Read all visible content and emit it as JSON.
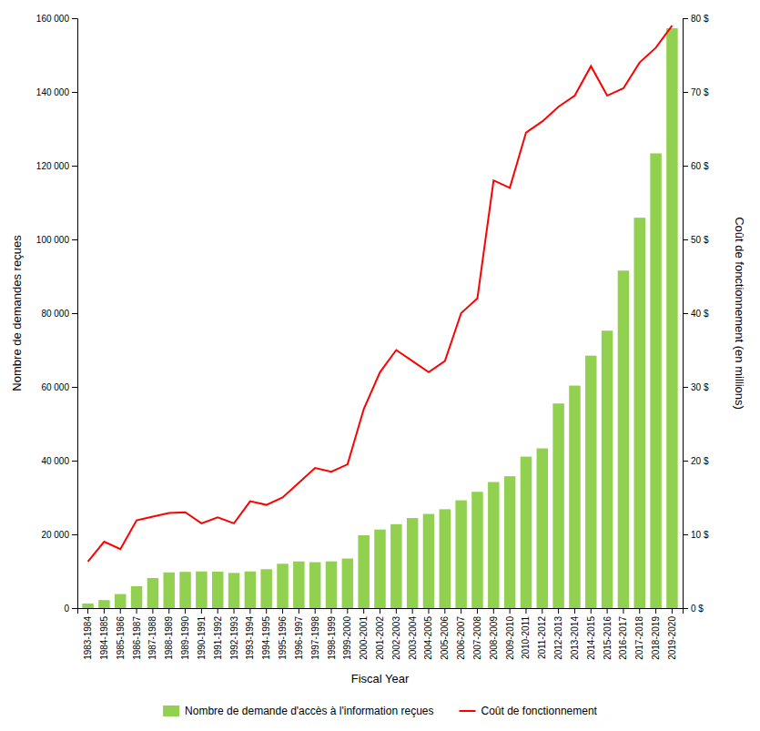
{
  "chart_data": {
    "type": "bar",
    "xlabel": "Fiscal Year",
    "ylabel": "Nombre de demandes reçues",
    "y2label": "Coût de fonctionnement (en millions)",
    "categories": [
      "1983-1984",
      "1984-1985",
      "1985-1986",
      "1986-1987",
      "1987-1988",
      "1988-1989",
      "1989-1990",
      "1990-1991",
      "1991-1992",
      "1992-1993",
      "1993-1994",
      "1994-1995",
      "1995-1996",
      "1996-1997",
      "1997-1998",
      "1998-1999",
      "1999-2000",
      "2000-2001",
      "2001-2002",
      "2002-2003",
      "2003-2004",
      "2004-2005",
      "2005-2006",
      "2006-2007",
      "2007-2008",
      "2008-2009",
      "2009-2010",
      "2010-2011",
      "2011-2012",
      "2012-2013",
      "2013-2014",
      "2014-2015",
      "2015-2016",
      "2016-2017",
      "2017-2018",
      "2018-2019",
      "2019-2020"
    ],
    "series": [
      {
        "name": "Nombre de demande d'accès à l'information reçues",
        "type": "bar",
        "color": "#92d050",
        "values": [
          1252,
          2178,
          3806,
          5933,
          8147,
          9684,
          9825,
          9953,
          9897,
          9545,
          9949,
          10547,
          12024,
          12662,
          12458,
          12680,
          13447,
          19748,
          21314,
          22769,
          24424,
          25534,
          26820,
          29244,
          31543,
          34196,
          35763,
          41088,
          43326,
          55501,
          60350,
          68472,
          75248,
          91547,
          105895,
          123337,
          157274
        ]
      },
      {
        "name": "Coût de fonctionnement",
        "type": "line",
        "axis": "y2",
        "color": "#ff0000",
        "values": [
          6.3,
          9.0,
          8.0,
          11.9,
          12.4,
          12.9,
          13.0,
          11.5,
          12.3,
          11.5,
          14.5,
          14.0,
          15.0,
          17.0,
          19.0,
          18.5,
          19.5,
          27.0,
          32.0,
          35.0,
          33.5,
          32.0,
          33.5,
          40.0,
          42.0,
          58.0,
          57.0,
          64.5,
          66.0,
          68.0,
          69.5,
          73.5,
          69.5,
          70.5,
          74.0,
          76.0,
          79.0
        ]
      }
    ],
    "ylim": [
      0,
      160000
    ],
    "yticks": [
      0,
      {
        "value": 20000,
        "label": "20 000"
      },
      {
        "value": 40000,
        "label": "40 000"
      },
      {
        "value": 60000,
        "label": "60 000"
      },
      {
        "value": 80000,
        "label": "80 000"
      },
      {
        "value": 100000,
        "label": "100 000"
      },
      {
        "value": 120000,
        "label": "120 000"
      },
      {
        "value": 140000,
        "label": "140 000"
      },
      {
        "value": 160000,
        "label": "160 000"
      }
    ],
    "y2lim": [
      0,
      80
    ],
    "y2ticks": [
      {
        "value": 0,
        "label": "0 $"
      },
      {
        "value": 10,
        "label": "10 $"
      },
      {
        "value": 20,
        "label": "20 $"
      },
      {
        "value": 30,
        "label": "30 $"
      },
      {
        "value": 40,
        "label": "40 $"
      },
      {
        "value": 50,
        "label": "50 $"
      },
      {
        "value": 60,
        "label": "60 $"
      },
      {
        "value": 70,
        "label": "70 $"
      },
      {
        "value": 80,
        "label": "80 $"
      }
    ],
    "grid": false,
    "legend": "bottom"
  }
}
